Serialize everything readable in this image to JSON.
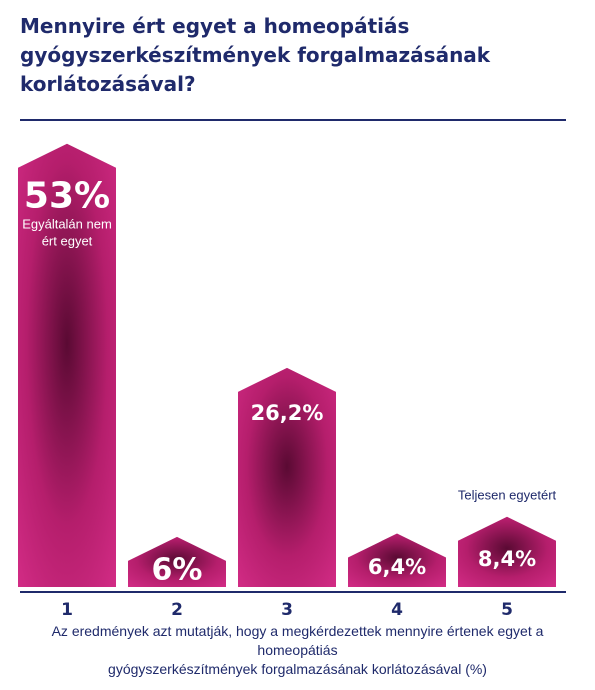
{
  "title_lines": [
    "Mennyire ért egyet a homeopátiás",
    "gyógyszerkészítmények forgalmazásának",
    "korlátozásával?"
  ],
  "caption_lines": [
    "Az eredmények azt mutatják, hogy a megkérdezettek mennyire értenek egyet a homeopátiás",
    "gyógyszerkészítmények forgalmazásának korlátozásával (%)"
  ],
  "colors": {
    "title": "#1f2a6b",
    "bar_light": "#d32c86",
    "bar_mid": "#b51e6c",
    "bar_dark": "#5a0a33",
    "value_text": "#ffffff",
    "axis": "#1f2a6b"
  },
  "chart_data": {
    "type": "bar",
    "categories": [
      "1",
      "2",
      "3",
      "4",
      "5"
    ],
    "values": [
      53,
      6,
      26.2,
      6.4,
      8.4
    ],
    "value_labels": [
      "53%",
      "6%",
      "26,2%",
      "6,4%",
      "8,4%"
    ],
    "annotations": [
      {
        "category": "1",
        "text": "Egyáltalán nem",
        "text2": "ért egyet"
      },
      {
        "category": "5",
        "text": "Teljesen egyetért"
      }
    ],
    "ylim": [
      0,
      55
    ],
    "grid": false
  }
}
